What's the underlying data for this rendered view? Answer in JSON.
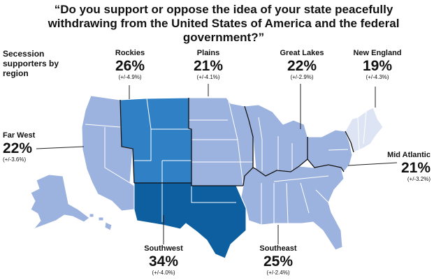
{
  "title": "“Do you support or oppose the idea of your state peacefully withdrawing from the United States of America and the federal government?”",
  "legend_title": "Secession supporters by region",
  "colors": {
    "far_west": "#9db3df",
    "plains": "#9db3df",
    "great_lakes": "#9db3df",
    "southeast": "#9db3df",
    "mid_atlantic": "#9db3df",
    "new_england": "#dde4f4",
    "rockies": "#2f80c4",
    "southwest": "#0d5f9f",
    "border": "#ffffff",
    "region_border": "#111111",
    "leader": "#222222"
  },
  "regions": [
    {
      "key": "rockies",
      "name": "Rockies",
      "pct": "26%",
      "moe": "(+/-4.9%)"
    },
    {
      "key": "plains",
      "name": "Plains",
      "pct": "21%",
      "moe": "(+/-4.1%)"
    },
    {
      "key": "great_lakes",
      "name": "Great Lakes",
      "pct": "22%",
      "moe": "(+/-2.9%)"
    },
    {
      "key": "new_england",
      "name": "New England",
      "pct": "19%",
      "moe": "(+/-4.3%)"
    },
    {
      "key": "far_west",
      "name": "Far West",
      "pct": "22%",
      "moe": "(+/-3.6%)"
    },
    {
      "key": "mid_atlantic",
      "name": "Mid Atlantic",
      "pct": "21%",
      "moe": "(+/-3.2%)"
    },
    {
      "key": "southwest",
      "name": "Southwest",
      "pct": "34%",
      "moe": "(+/-4.0%)"
    },
    {
      "key": "southeast",
      "name": "Southeast",
      "pct": "25%",
      "moe": "(+/-2.4%)"
    }
  ]
}
